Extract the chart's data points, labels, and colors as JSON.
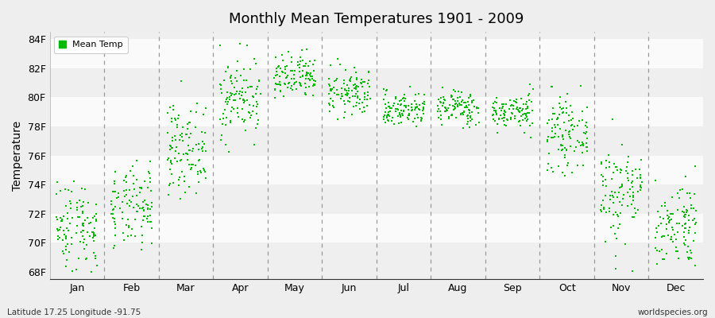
{
  "title": "Monthly Mean Temperatures 1901 - 2009",
  "ylabel": "Temperature",
  "xlabel_labels": [
    "Jan",
    "Feb",
    "Mar",
    "Apr",
    "May",
    "Jun",
    "Jul",
    "Aug",
    "Sep",
    "Oct",
    "Nov",
    "Dec"
  ],
  "ytick_labels": [
    "68F",
    "70F",
    "72F",
    "74F",
    "76F",
    "78F",
    "80F",
    "82F",
    "84F"
  ],
  "ytick_values": [
    68,
    70,
    72,
    74,
    76,
    78,
    80,
    82,
    84
  ],
  "ylim": [
    67.5,
    84.5
  ],
  "dot_color": "#00BB00",
  "legend_label": "Mean Temp",
  "footnote_left": "Latitude 17.25 Longitude -91.75",
  "footnote_right": "worldspecies.org",
  "bg_color_light": "#EFEFEF",
  "bg_color_white": "#FAFAFA",
  "monthly_means": [
    71.2,
    72.3,
    76.5,
    80.0,
    81.3,
    80.3,
    79.2,
    79.3,
    79.0,
    77.5,
    73.5,
    71.3
  ],
  "monthly_stds": [
    1.6,
    1.4,
    1.5,
    1.4,
    0.8,
    0.8,
    0.6,
    0.6,
    0.6,
    1.2,
    1.8,
    1.5
  ],
  "n_years": 109,
  "seed": 42,
  "dot_size": 3,
  "fig_bg": "#EEEEEE"
}
